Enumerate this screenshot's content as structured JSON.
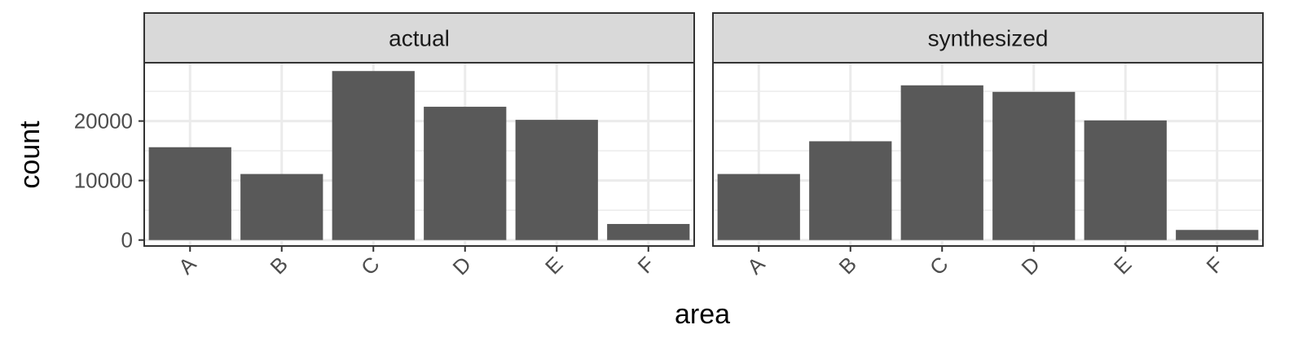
{
  "chart_data": {
    "type": "bar",
    "xlabel": "area",
    "ylabel": "count",
    "ylim": [
      -1000,
      29800
    ],
    "y_ticks": [
      0,
      10000,
      20000
    ],
    "y_tick_labels": [
      "0",
      "10000",
      "20000"
    ],
    "y_minor_ticks": [
      5000,
      15000,
      25000
    ],
    "grid": true,
    "bar_color": "#595959",
    "strip_color": "#d9d9d9",
    "gridline_color": "#ebebeb",
    "categories": [
      "A",
      "B",
      "C",
      "D",
      "E",
      "F"
    ],
    "panels": [
      {
        "facet": "actual",
        "values": [
          15600,
          11100,
          28400,
          22400,
          20200,
          2700
        ]
      },
      {
        "facet": "synthesized",
        "values": [
          11100,
          16600,
          26000,
          24900,
          20100,
          1700
        ]
      }
    ]
  }
}
